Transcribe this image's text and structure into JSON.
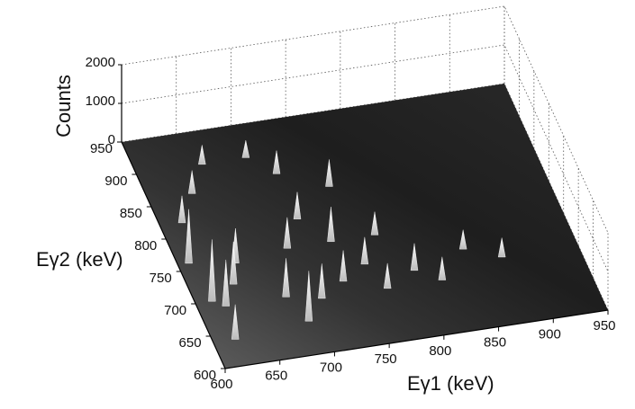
{
  "chart_data": {
    "type": "surface3d",
    "x_label": "Eγ1 (keV)",
    "y_label": "Eγ2 (keV)",
    "z_label": "Counts",
    "xlim": [
      600,
      950
    ],
    "xticks": [
      600,
      650,
      700,
      750,
      800,
      850,
      900,
      950
    ],
    "ylim": [
      600,
      950
    ],
    "yticks": [
      600,
      650,
      700,
      750,
      800,
      850,
      900,
      950
    ],
    "zlim": [
      0,
      2000
    ],
    "zticks": [
      0,
      1000,
      2000
    ],
    "grid": true,
    "color": "#ffffff",
    "x": [
      700,
      660,
      720,
      760,
      640,
      620,
      720,
      740,
      850,
      880,
      800,
      820,
      780,
      770,
      760,
      735,
      700,
      680,
      650,
      640,
      710,
      690,
      610,
      625,
      620,
      615
    ],
    "y": [
      900,
      900,
      870,
      840,
      860,
      820,
      800,
      760,
      720,
      700,
      700,
      680,
      760,
      680,
      720,
      700,
      760,
      690,
      750,
      720,
      680,
      650,
      760,
      690,
      640,
      700
    ],
    "values": [
      450,
      500,
      600,
      700,
      600,
      700,
      700,
      900,
      500,
      500,
      700,
      600,
      600,
      650,
      700,
      800,
      800,
      1000,
      900,
      1100,
      900,
      1300,
      1400,
      1200,
      900,
      1600
    ]
  }
}
